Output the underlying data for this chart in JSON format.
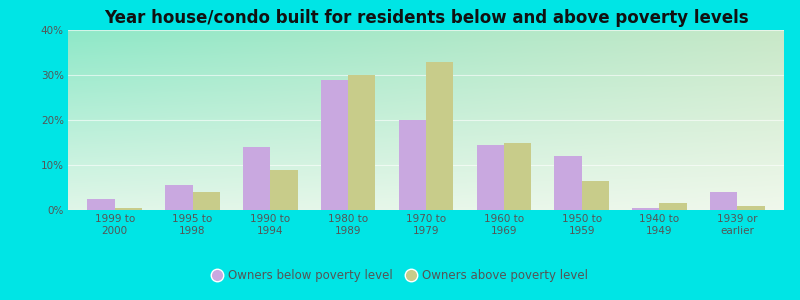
{
  "title": "Year house/condo built for residents below and above poverty levels",
  "categories": [
    "1999 to\n2000",
    "1995 to\n1998",
    "1990 to\n1994",
    "1980 to\n1989",
    "1970 to\n1979",
    "1960 to\n1969",
    "1950 to\n1959",
    "1940 to\n1949",
    "1939 or\nearlier"
  ],
  "below_poverty": [
    2.5,
    5.5,
    14.0,
    29.0,
    20.0,
    14.5,
    12.0,
    0.5,
    4.0
  ],
  "above_poverty": [
    0.5,
    4.0,
    9.0,
    30.0,
    33.0,
    15.0,
    6.5,
    1.5,
    1.0
  ],
  "below_color": "#c9a8e0",
  "above_color": "#c8cc8a",
  "ylim": [
    0,
    40
  ],
  "yticks": [
    0,
    10,
    20,
    30,
    40
  ],
  "ytick_labels": [
    "0%",
    "10%",
    "20%",
    "30%",
    "40%"
  ],
  "outer_bg": "#00e5e5",
  "bg_topleft": "#8ee8c8",
  "bg_topright": "#d8ecd8",
  "bg_bottom": "#f0f8ec",
  "title_fontsize": 12,
  "tick_fontsize": 7.5,
  "legend_below_label": "Owners below poverty level",
  "legend_above_label": "Owners above poverty level",
  "bar_width": 0.35
}
